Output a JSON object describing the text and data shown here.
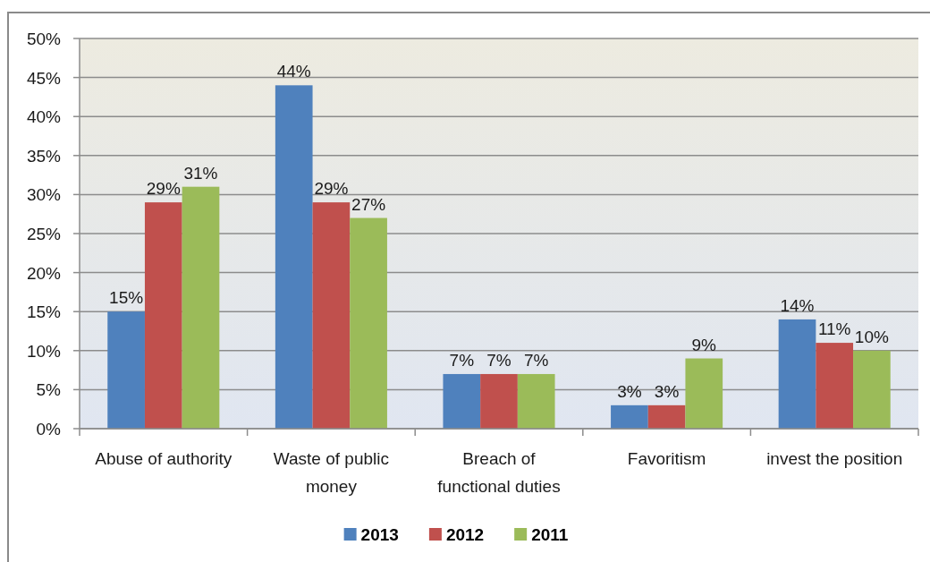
{
  "chart_data": {
    "type": "bar",
    "categories": [
      "Abuse of authority",
      "Waste of public money",
      "Breach of functional duties",
      "Favoritism",
      "invest the position"
    ],
    "series": [
      {
        "name": "2013",
        "color": "#4f81bd",
        "values": [
          15,
          44,
          7,
          3,
          14
        ],
        "value_labels": [
          "15%",
          "44%",
          "7%",
          "3%",
          "14%"
        ]
      },
      {
        "name": "2012",
        "color": "#c0504d",
        "values": [
          29,
          29,
          7,
          3,
          11
        ],
        "value_labels": [
          "29%",
          "29%",
          "7%",
          "3%",
          "11%"
        ]
      },
      {
        "name": "2011",
        "color": "#9bbb59",
        "values": [
          31,
          27,
          7,
          9,
          10
        ],
        "value_labels": [
          "31%",
          "27%",
          "7%",
          "9%",
          "10%"
        ]
      }
    ],
    "ylim": [
      0,
      50
    ],
    "yticks": [
      {
        "value": 0,
        "label": "0%"
      },
      {
        "value": 5,
        "label": "5%"
      },
      {
        "value": 10,
        "label": "10%"
      },
      {
        "value": 15,
        "label": "15%"
      },
      {
        "value": 20,
        "label": "20%"
      },
      {
        "value": 25,
        "label": "25%"
      },
      {
        "value": 30,
        "label": "30%"
      },
      {
        "value": 35,
        "label": "35%"
      },
      {
        "value": 40,
        "label": "40%"
      },
      {
        "value": 45,
        "label": "45%"
      },
      {
        "value": 50,
        "label": "50%"
      }
    ],
    "grid": "y",
    "legend": "bottom"
  }
}
